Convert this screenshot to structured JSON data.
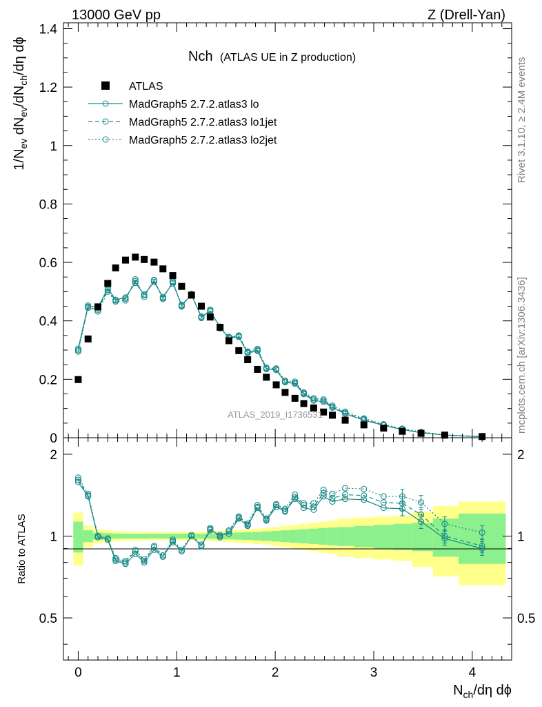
{
  "header": {
    "left": "13000 GeV pp",
    "right": "Z (Drell-Yan)"
  },
  "side_text": {
    "rivet": "Rivet 3.1.10, ≥ 2.4M events",
    "mcplots": "mcplots.cern.ch [arXiv:1306.3436]"
  },
  "watermark": "ATLAS_2019_I1736531",
  "colors": {
    "mc": "#1a8a88",
    "band_2sigma": "#ffff8c",
    "band_1sigma": "#8cf08c",
    "data": "#000000"
  },
  "chart_data": [
    {
      "type": "scatter",
      "panel": "main",
      "title": "Nch",
      "subtitle": "(ATLAS UE in Z production)",
      "ylabel": "1/N_ev dN_ev/dN_ch/dη dϕ",
      "xlim": [
        -0.15,
        4.4
      ],
      "ylim": [
        0,
        1.42
      ],
      "yticks": [
        0,
        0.2,
        0.4,
        0.6,
        0.8,
        1,
        1.2,
        1.4
      ],
      "ytick_labels": [
        "0",
        "0.2",
        "0.4",
        "0.6",
        "0.8",
        "1",
        "1.2",
        "1.4"
      ],
      "legend_position": "top-left",
      "x": [
        0,
        0.1,
        0.2,
        0.3,
        0.38,
        0.48,
        0.58,
        0.67,
        0.77,
        0.86,
        0.96,
        1.05,
        1.15,
        1.25,
        1.34,
        1.44,
        1.53,
        1.63,
        1.72,
        1.82,
        1.91,
        2.01,
        2.1,
        2.2,
        2.29,
        2.39,
        2.49,
        2.58,
        2.71,
        2.9,
        3.1,
        3.29,
        3.48,
        3.72,
        4.1
      ],
      "series": [
        {
          "name": "ATLAS",
          "style": "data",
          "values": [
            0.199,
            0.338,
            0.448,
            0.528,
            0.581,
            0.608,
            0.618,
            0.61,
            0.601,
            0.578,
            0.555,
            0.518,
            0.488,
            0.45,
            0.413,
            0.378,
            0.332,
            0.298,
            0.267,
            0.234,
            0.207,
            0.181,
            0.155,
            0.135,
            0.117,
            0.102,
            0.088,
            0.077,
            0.06,
            0.044,
            0.033,
            0.022,
            0.015,
            0.009,
            0.004
          ]
        },
        {
          "name": "MadGraph5 2.7.2.atlas3 lo",
          "style": "solid",
          "values": [
            0.305,
            0.452,
            0.445,
            0.512,
            0.472,
            0.48,
            0.53,
            0.49,
            0.533,
            0.482,
            0.528,
            0.455,
            0.488,
            0.415,
            0.432,
            0.38,
            0.34,
            0.345,
            0.29,
            0.297,
            0.235,
            0.232,
            0.19,
            0.185,
            0.149,
            0.127,
            0.123,
            0.103,
            0.082,
            0.06,
            0.042,
            0.028,
            0.017,
            0.009,
            0.003
          ]
        },
        {
          "name": "MadGraph5 2.7.2.atlas3 lo1jet",
          "style": "dashed",
          "values": [
            0.3,
            0.448,
            0.438,
            0.506,
            0.47,
            0.476,
            0.536,
            0.488,
            0.538,
            0.478,
            0.532,
            0.452,
            0.49,
            0.412,
            0.435,
            0.377,
            0.343,
            0.348,
            0.292,
            0.3,
            0.237,
            0.234,
            0.192,
            0.188,
            0.152,
            0.131,
            0.127,
            0.106,
            0.085,
            0.063,
            0.044,
            0.029,
            0.018,
            0.009,
            0.004
          ]
        },
        {
          "name": "MadGraph5 2.7.2.atlas3 lo2jet",
          "style": "dotted",
          "values": [
            0.295,
            0.445,
            0.432,
            0.5,
            0.466,
            0.47,
            0.542,
            0.482,
            0.54,
            0.475,
            0.536,
            0.449,
            0.492,
            0.41,
            0.438,
            0.374,
            0.345,
            0.35,
            0.295,
            0.304,
            0.24,
            0.237,
            0.195,
            0.192,
            0.155,
            0.135,
            0.131,
            0.11,
            0.089,
            0.066,
            0.046,
            0.031,
            0.02,
            0.01,
            0.004
          ]
        }
      ]
    },
    {
      "type": "scatter",
      "panel": "ratio",
      "ylabel": "Ratio to ATLAS",
      "xlabel": "N_ch/dη dϕ",
      "xlim": [
        -0.15,
        4.4
      ],
      "ylim": [
        0.35,
        2.3
      ],
      "yticks": [
        0.5,
        1,
        2
      ],
      "ytick_labels": [
        "0.5",
        "1",
        "2"
      ],
      "xticks": [
        0,
        1,
        2,
        3,
        4
      ],
      "xtick_labels": [
        "0",
        "1",
        "2",
        "3",
        "4"
      ],
      "x": [
        0,
        0.1,
        0.2,
        0.3,
        0.38,
        0.48,
        0.58,
        0.67,
        0.77,
        0.86,
        0.96,
        1.05,
        1.15,
        1.25,
        1.34,
        1.44,
        1.53,
        1.63,
        1.72,
        1.82,
        1.91,
        2.01,
        2.1,
        2.2,
        2.29,
        2.39,
        2.49,
        2.58,
        2.71,
        2.9,
        3.1,
        3.29,
        3.48,
        3.72,
        4.1
      ],
      "bands": {
        "edges": [
          -0.05,
          0.05,
          0.15,
          0.25,
          0.34,
          0.43,
          0.53,
          0.62,
          0.72,
          0.81,
          0.91,
          1.0,
          1.1,
          1.2,
          1.29,
          1.39,
          1.48,
          1.58,
          1.67,
          1.77,
          1.86,
          1.96,
          2.05,
          2.15,
          2.24,
          2.34,
          2.44,
          2.53,
          2.63,
          2.8,
          3.0,
          3.2,
          3.39,
          3.6,
          3.86,
          4.34
        ],
        "one_sigma_half_width": [
          0.13,
          0.05,
          0.03,
          0.025,
          0.022,
          0.02,
          0.02,
          0.02,
          0.02,
          0.02,
          0.02,
          0.02,
          0.02,
          0.02,
          0.022,
          0.025,
          0.027,
          0.03,
          0.033,
          0.036,
          0.04,
          0.045,
          0.05,
          0.055,
          0.06,
          0.065,
          0.07,
          0.075,
          0.08,
          0.09,
          0.1,
          0.11,
          0.12,
          0.16,
          0.21
        ],
        "two_sigma_half_width": [
          0.22,
          0.09,
          0.06,
          0.05,
          0.045,
          0.04,
          0.038,
          0.037,
          0.036,
          0.036,
          0.036,
          0.036,
          0.036,
          0.037,
          0.04,
          0.045,
          0.05,
          0.055,
          0.06,
          0.065,
          0.07,
          0.08,
          0.09,
          0.1,
          0.11,
          0.12,
          0.13,
          0.14,
          0.16,
          0.17,
          0.18,
          0.19,
          0.23,
          0.29,
          0.34
        ]
      },
      "series": [
        {
          "name": "MadGraph5 2.7.2.atlas3 lo",
          "style": "solid",
          "values": [
            1.58,
            1.4,
            0.99,
            0.97,
            0.81,
            0.79,
            0.86,
            0.8,
            0.89,
            0.84,
            0.95,
            0.88,
            1.0,
            0.92,
            1.05,
            1.01,
            1.02,
            1.16,
            1.09,
            1.27,
            1.14,
            1.28,
            1.23,
            1.37,
            1.27,
            1.25,
            1.4,
            1.34,
            1.37,
            1.36,
            1.27,
            1.26,
            1.13,
            0.98,
            0.9
          ]
        },
        {
          "name": "MadGraph5 2.7.2.atlas3 lo1jet",
          "style": "dashed",
          "values": [
            1.61,
            1.41,
            1.0,
            0.98,
            0.82,
            0.8,
            0.88,
            0.81,
            0.91,
            0.84,
            0.96,
            0.88,
            1.0,
            0.92,
            1.06,
            1.0,
            1.04,
            1.17,
            1.1,
            1.28,
            1.15,
            1.3,
            1.24,
            1.39,
            1.3,
            1.28,
            1.44,
            1.38,
            1.42,
            1.41,
            1.33,
            1.32,
            1.2,
            1.0,
            0.92
          ]
        },
        {
          "name": "MadGraph5 2.7.2.atlas3 lo2jet",
          "style": "dotted",
          "values": [
            1.64,
            1.43,
            1.0,
            0.98,
            0.83,
            0.81,
            0.89,
            0.82,
            0.92,
            0.85,
            0.97,
            0.89,
            1.01,
            0.93,
            1.07,
            0.99,
            1.05,
            1.18,
            1.11,
            1.3,
            1.16,
            1.31,
            1.26,
            1.42,
            1.32,
            1.32,
            1.48,
            1.43,
            1.5,
            1.49,
            1.4,
            1.4,
            1.33,
            1.11,
            1.03
          ]
        }
      ]
    }
  ]
}
